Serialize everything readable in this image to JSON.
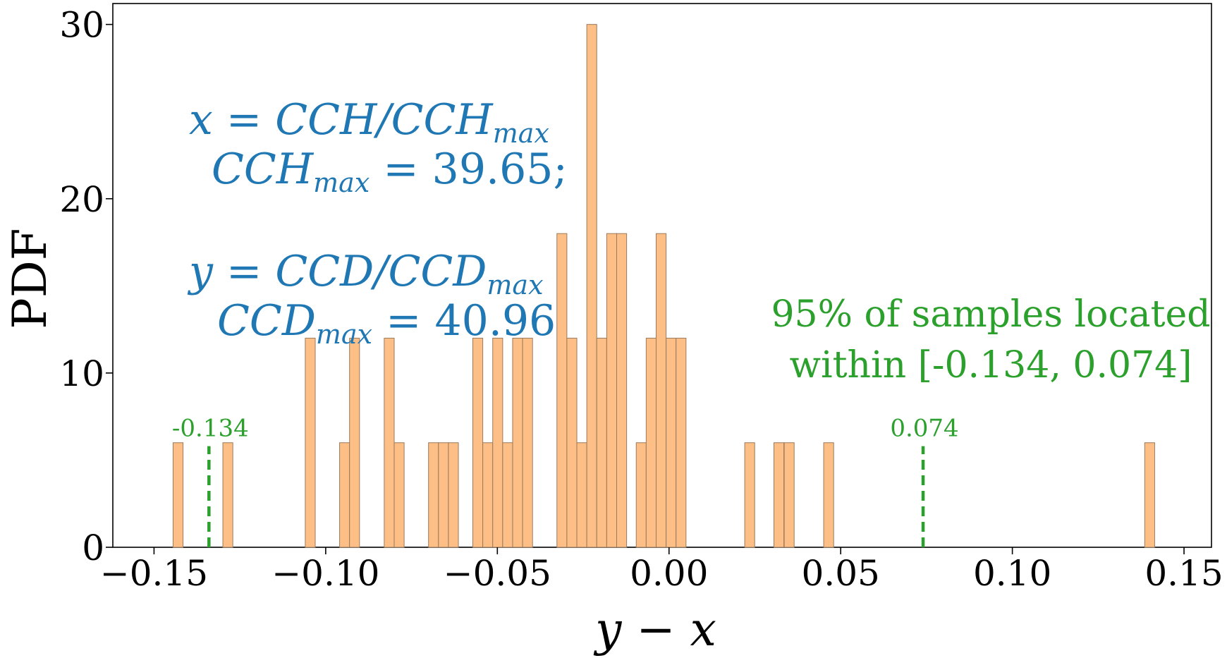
{
  "chart_data": {
    "type": "bar",
    "xlabel": "y − x",
    "ylabel": "PDF",
    "xlim": [
      -0.162,
      0.158
    ],
    "ylim": [
      0,
      31.2
    ],
    "xticks": [
      -0.15,
      -0.1,
      -0.05,
      0.0,
      0.05,
      0.1,
      0.15
    ],
    "xtick_labels": [
      "−0.15",
      "−0.10",
      "−0.05",
      "0.00",
      "0.05",
      "0.10",
      "0.15"
    ],
    "yticks": [
      0,
      10,
      20,
      30
    ],
    "ytick_labels": [
      "0",
      "10",
      "20",
      "30"
    ],
    "bar_color": "#fdbf85",
    "bar_edge_color": "#9a7a5c",
    "bin_width": 0.0029,
    "bins": [
      {
        "x": -0.143,
        "y": 6
      },
      {
        "x": -0.1285,
        "y": 6
      },
      {
        "x": -0.1045,
        "y": 12
      },
      {
        "x": -0.0945,
        "y": 6
      },
      {
        "x": -0.0916,
        "y": 12
      },
      {
        "x": -0.0815,
        "y": 12
      },
      {
        "x": -0.0786,
        "y": 6
      },
      {
        "x": -0.0686,
        "y": 6
      },
      {
        "x": -0.0657,
        "y": 6
      },
      {
        "x": -0.0628,
        "y": 6
      },
      {
        "x": -0.0557,
        "y": 12
      },
      {
        "x": -0.0528,
        "y": 6
      },
      {
        "x": -0.0499,
        "y": 12
      },
      {
        "x": -0.047,
        "y": 6
      },
      {
        "x": -0.0441,
        "y": 12
      },
      {
        "x": -0.0412,
        "y": 12
      },
      {
        "x": -0.0312,
        "y": 18
      },
      {
        "x": -0.0283,
        "y": 12
      },
      {
        "x": -0.0254,
        "y": 6
      },
      {
        "x": -0.0225,
        "y": 30
      },
      {
        "x": -0.0196,
        "y": 12
      },
      {
        "x": -0.0167,
        "y": 18
      },
      {
        "x": -0.0138,
        "y": 18
      },
      {
        "x": -0.0081,
        "y": 6
      },
      {
        "x": -0.0052,
        "y": 12
      },
      {
        "x": -0.0023,
        "y": 18
      },
      {
        "x": 0.0006,
        "y": 12
      },
      {
        "x": 0.0035,
        "y": 12
      },
      {
        "x": 0.0235,
        "y": 6
      },
      {
        "x": 0.032,
        "y": 6
      },
      {
        "x": 0.035,
        "y": 6
      },
      {
        "x": 0.0465,
        "y": 6
      },
      {
        "x": 0.14,
        "y": 6
      }
    ],
    "vlines": [
      {
        "x": -0.134,
        "label": "-0.134",
        "color": "#2ca02c",
        "ymax": 5.8
      },
      {
        "x": 0.074,
        "label": "0.074",
        "color": "#2ca02c",
        "ymax": 5.8
      }
    ],
    "annotations_blue": [
      "x = CCH/CCH",
      "max",
      "CCH",
      "max",
      " = 39.65;",
      "y = CCD/CCD",
      "max",
      "CCD",
      "max",
      " = 40.96"
    ],
    "annotation_green": [
      "95% of samples located",
      "within [-0.134, 0.074]"
    ]
  }
}
